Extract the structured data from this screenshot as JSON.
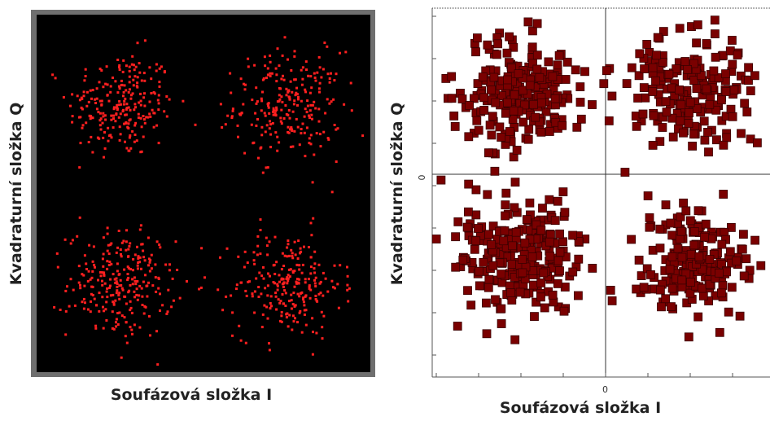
{
  "chart_data": [
    {
      "type": "scatter",
      "panel": "left",
      "xlabel": "Soufázová složka I",
      "ylabel": "Kvadraturní složka Q",
      "background": "#000000",
      "marker_color": "#ff2020",
      "clusters": [
        {
          "x": -1,
          "y": 1,
          "count": 240
        },
        {
          "x": 1,
          "y": 1,
          "count": 240
        },
        {
          "x": -1,
          "y": -1,
          "count": 260
        },
        {
          "x": 1,
          "y": -1,
          "count": 240
        }
      ],
      "xlim": [
        -2,
        2
      ],
      "ylim": [
        -2,
        2
      ],
      "grid": false
    },
    {
      "type": "scatter",
      "panel": "right",
      "xlabel": "Soufázová složka I",
      "ylabel": "Kvadraturní složka Q",
      "background": "#ffffff",
      "marker_color": "#7a0000",
      "marker_edge": "#3a0000",
      "x_tick_labels": [
        "0"
      ],
      "y_tick_labels": [
        "0"
      ],
      "clusters": [
        {
          "x": -1,
          "y": 1,
          "count": 230
        },
        {
          "x": 1,
          "y": 1,
          "count": 200
        },
        {
          "x": -1,
          "y": -1,
          "count": 240
        },
        {
          "x": 1,
          "y": -1,
          "count": 200
        }
      ],
      "xlim": [
        -2,
        2
      ],
      "ylim": [
        -2,
        2
      ],
      "grid": false
    }
  ]
}
